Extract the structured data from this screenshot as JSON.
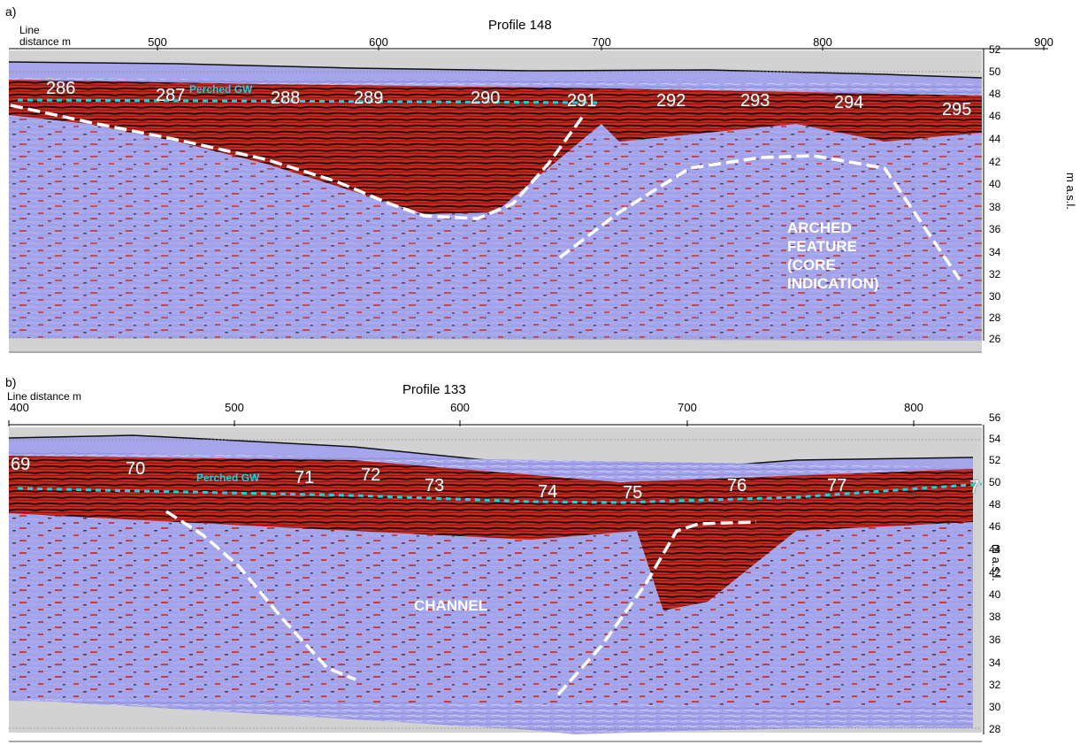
{
  "panels": [
    {
      "letter": "a)",
      "title": "Profile 148",
      "xlabel_line1": "Line",
      "xlabel_line2": "distance m",
      "x_ticks": [
        "500",
        "600",
        "700",
        "800",
        "900"
      ],
      "y_ticks": [
        "52",
        "50",
        "48",
        "46",
        "44",
        "42",
        "40",
        "38",
        "36",
        "34",
        "32",
        "30",
        "28",
        "26"
      ],
      "ylabel": "m a.s.l.",
      "perched_gw": "Perched GW",
      "markers": [
        "286",
        "287",
        "288",
        "289",
        "290",
        "291",
        "292",
        "293",
        "294",
        "295"
      ],
      "feature_lines": [
        "ARCHED",
        "FEATURE",
        "(CORE",
        "INDICATION)"
      ]
    },
    {
      "letter": "b)",
      "title": "Profile 133",
      "xlabel_line1": "Line distance m",
      "x_ticks": [
        "400",
        "500",
        "600",
        "700",
        "800"
      ],
      "y_ticks": [
        "56",
        "54",
        "52",
        "50",
        "48",
        "46",
        "44",
        "42",
        "40",
        "38",
        "36",
        "34",
        "32",
        "30",
        "28"
      ],
      "ylabel": "m a.s.l.",
      "perched_gw": "Perched GW",
      "markers": [
        "69",
        "70",
        "71",
        "72",
        "73",
        "74",
        "75",
        "76",
        "77",
        "7"
      ],
      "feature_label": "CHANNEL"
    }
  ],
  "colors": {
    "radar_blue": "#a5a5ec",
    "reflector_red": "#c8281e",
    "background_gray": "#d2d2d2",
    "perched_gw": "#19d3e0",
    "interpretation": "#ffffff"
  }
}
